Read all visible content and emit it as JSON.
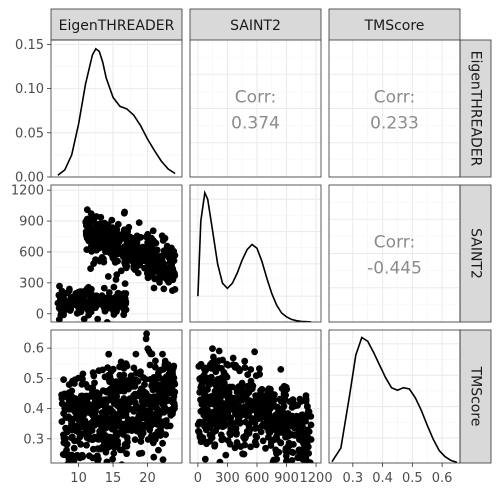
{
  "chart_data": {
    "type": "scatter-matrix",
    "variables": [
      "EigenTHREADER",
      "SAINT2",
      "TMScore"
    ],
    "axes": {
      "EigenTHREADER": {
        "range": [
          6,
          25
        ],
        "ticks": [
          10,
          15,
          20
        ],
        "density_ticks": [
          0.0,
          0.05,
          0.1,
          0.15
        ],
        "density_labels": [
          "0.00",
          "0.05",
          "0.10",
          "0.15"
        ],
        "density_range": [
          0,
          0.155
        ]
      },
      "SAINT2": {
        "range": [
          -80,
          1250
        ],
        "ticks": [
          0,
          300,
          600,
          900,
          1200
        ],
        "tick_labels": [
          "0",
          "300",
          "600",
          "900",
          "1200"
        ]
      },
      "TMScore": {
        "range": [
          0.22,
          0.66
        ],
        "ticks": [
          0.3,
          0.4,
          0.5,
          0.6
        ],
        "tick_labels": [
          "0.3",
          "0.4",
          "0.5",
          "0.6"
        ]
      }
    },
    "correlations": [
      {
        "row": 0,
        "col": 1,
        "label": "Corr:",
        "value": "0.374"
      },
      {
        "row": 0,
        "col": 2,
        "label": "Corr:",
        "value": "0.233"
      },
      {
        "row": 1,
        "col": 2,
        "label": "Corr:",
        "value": "-0.445"
      }
    ],
    "densities": {
      "EigenTHREADER": {
        "x": [
          7,
          8,
          9,
          10,
          11,
          12,
          12.5,
          13,
          13.5,
          14,
          15,
          16,
          17,
          18,
          19,
          20,
          21,
          22,
          23,
          24
        ],
        "y": [
          0.002,
          0.008,
          0.025,
          0.06,
          0.105,
          0.138,
          0.145,
          0.142,
          0.13,
          0.112,
          0.09,
          0.08,
          0.077,
          0.07,
          0.058,
          0.043,
          0.03,
          0.018,
          0.009,
          0.004
        ]
      },
      "SAINT2": {
        "x": [
          0,
          30,
          70,
          100,
          150,
          200,
          250,
          300,
          350,
          400,
          450,
          500,
          550,
          600,
          650,
          700,
          750,
          800,
          850,
          900,
          950,
          1000,
          1050,
          1100,
          1150
        ],
        "y": [
          0.2,
          0.78,
          1.0,
          0.95,
          0.7,
          0.45,
          0.3,
          0.26,
          0.3,
          0.38,
          0.48,
          0.56,
          0.6,
          0.57,
          0.47,
          0.34,
          0.22,
          0.13,
          0.07,
          0.04,
          0.02,
          0.01,
          0.005,
          0.002,
          0.001
        ]
      },
      "TMScore": {
        "x": [
          0.23,
          0.26,
          0.29,
          0.31,
          0.33,
          0.35,
          0.37,
          0.39,
          0.41,
          0.43,
          0.45,
          0.47,
          0.49,
          0.51,
          0.53,
          0.55,
          0.57,
          0.59,
          0.61,
          0.63,
          0.65
        ],
        "y": [
          0.01,
          0.12,
          0.55,
          0.86,
          1.0,
          0.97,
          0.88,
          0.78,
          0.68,
          0.6,
          0.58,
          0.6,
          0.59,
          0.52,
          0.42,
          0.3,
          0.19,
          0.1,
          0.05,
          0.02,
          0.005
        ]
      }
    },
    "scatter_clusters": {
      "SAINT2_vs_EigenTHREADER": [
        {
          "n": 420,
          "x_range": [
            11,
            24
          ],
          "y_center_at_x11": 780,
          "slope": -26,
          "spread": 110
        },
        {
          "n": 180,
          "x_range": [
            7,
            17
          ],
          "y_center": 110,
          "spread": 70
        }
      ],
      "TMScore_vs_EigenTHREADER": [
        {
          "n": 650,
          "x_range": [
            7.5,
            24
          ],
          "y_center": 0.39,
          "slope": 0.006,
          "spread": 0.075
        }
      ],
      "TMScore_vs_SAINT2": [
        {
          "n": 180,
          "x_range": [
            0,
            300
          ],
          "y_center": 0.42,
          "spread": 0.08
        },
        {
          "n": 420,
          "x_range": [
            300,
            1150
          ],
          "y_center_at_x300": 0.43,
          "slope": -0.00014,
          "spread": 0.065
        }
      ]
    }
  }
}
